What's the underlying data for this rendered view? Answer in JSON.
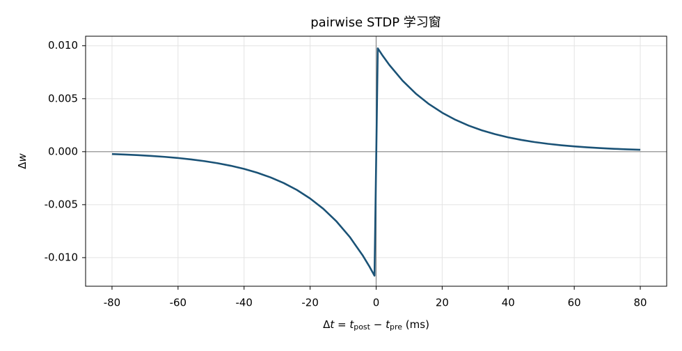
{
  "chart_data": {
    "type": "line",
    "title": "pairwise STDP 学习窗",
    "xlabel": [
      "Δ",
      "t",
      " = ",
      "t",
      "post",
      " − ",
      "t",
      "pre",
      " (ms)"
    ],
    "ylabel": [
      "Δ",
      "w"
    ],
    "x": [
      -80,
      -76,
      -72,
      -68,
      -64,
      -60,
      -56,
      -52,
      -48,
      -44,
      -40,
      -36,
      -32,
      -28,
      -24,
      -20,
      -16,
      -12,
      -8,
      -4,
      -2,
      -0.5,
      0.5,
      2,
      4,
      8,
      12,
      16,
      20,
      24,
      28,
      32,
      36,
      40,
      44,
      48,
      52,
      56,
      60,
      64,
      68,
      72,
      76,
      80
    ],
    "series": [
      {
        "color": "#1a5276",
        "values": [
          -0.00022,
          -0.000268,
          -0.000328,
          -0.0004,
          -0.000489,
          -0.000597,
          -0.00073,
          -0.000891,
          -0.001089,
          -0.00133,
          -0.001624,
          -0.001984,
          -0.002423,
          -0.002959,
          -0.003614,
          -0.004415,
          -0.005392,
          -0.006586,
          -0.008044,
          -0.009825,
          -0.010858,
          -0.011704,
          0.009753,
          0.009048,
          0.008187,
          0.006703,
          0.005488,
          0.004493,
          0.003679,
          0.003012,
          0.002466,
          0.002019,
          0.001653,
          0.001353,
          0.001108,
          0.000907,
          0.000743,
          0.000608,
          0.000498,
          0.000408,
          0.000334,
          0.000273,
          0.000224,
          0.000183
        ]
      }
    ],
    "xlim": [
      -88,
      88
    ],
    "ylim": [
      -0.0127,
      0.0109
    ],
    "xticks": [
      -80,
      -60,
      -40,
      -20,
      0,
      20,
      40,
      60,
      80
    ],
    "yticks": [
      {
        "value": -0.01,
        "label": "-0.010"
      },
      {
        "value": -0.005,
        "label": "-0.005"
      },
      {
        "value": 0,
        "label": "0.000"
      },
      {
        "value": 0.005,
        "label": "0.005"
      },
      {
        "value": 0.01,
        "label": "0.010"
      }
    ],
    "hline": 0,
    "vline": 0,
    "reference_color": "#888888",
    "grid": true
  }
}
